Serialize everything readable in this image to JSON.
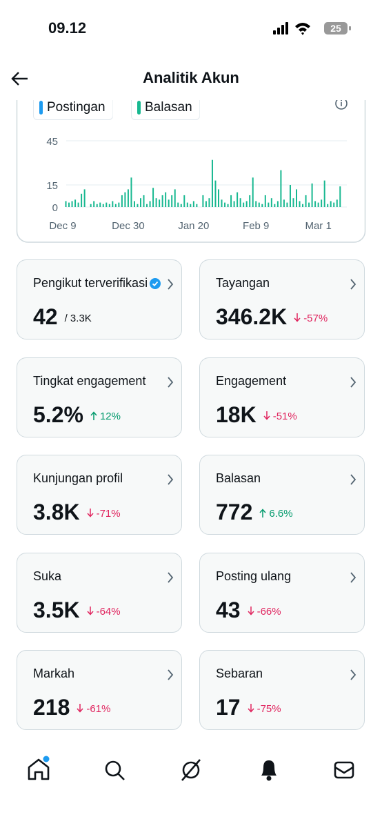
{
  "status": {
    "time": "09.12",
    "battery": "25"
  },
  "header": {
    "title": "Analitik Akun"
  },
  "chart_data": {
    "type": "bar",
    "stacked": true,
    "categories": [
      "Dec 9",
      null,
      null,
      null,
      null,
      null,
      null,
      null,
      null,
      null,
      null,
      null,
      null,
      null,
      null,
      null,
      null,
      null,
      null,
      null,
      null,
      "Dec 30",
      null,
      null,
      null,
      null,
      null,
      null,
      null,
      null,
      null,
      null,
      null,
      null,
      null,
      null,
      null,
      null,
      null,
      null,
      null,
      null,
      "Jan 20",
      null,
      null,
      null,
      null,
      null,
      null,
      null,
      null,
      null,
      null,
      null,
      null,
      null,
      null,
      null,
      null,
      null,
      null,
      null,
      "Feb 9",
      null,
      null,
      null,
      null,
      null,
      null,
      null,
      null,
      null,
      null,
      null,
      null,
      null,
      null,
      null,
      null,
      null,
      null,
      null,
      "Mar 1",
      null,
      null,
      null,
      null,
      null,
      null,
      null
    ],
    "series": [
      {
        "name": "Postingan",
        "color": "#1d9bf0",
        "values": [
          0,
          0,
          0,
          0,
          0,
          0,
          0,
          0,
          0,
          0,
          0,
          0,
          0,
          0,
          0,
          0,
          0,
          0,
          0,
          0,
          0,
          0,
          0,
          0,
          0,
          0,
          0,
          0,
          0,
          0,
          0,
          0,
          0,
          0,
          0,
          0,
          0,
          0,
          0,
          0,
          0,
          0,
          0,
          0,
          0,
          0,
          0,
          0,
          0,
          0,
          0,
          0,
          0,
          0,
          0,
          0,
          0,
          0,
          0,
          0,
          0,
          0,
          0,
          0,
          0,
          0,
          0,
          0,
          0,
          0,
          0,
          0,
          0,
          0,
          0,
          0,
          0,
          0,
          0,
          0,
          0,
          0,
          0,
          0,
          0,
          0,
          0,
          0,
          0,
          0
        ]
      },
      {
        "name": "Balasan",
        "color": "#17b890",
        "values": [
          0,
          4,
          3,
          4,
          5,
          3,
          9,
          12,
          0,
          2,
          4,
          2,
          3,
          2,
          3,
          2,
          4,
          2,
          3,
          8,
          10,
          12,
          20,
          4,
          2,
          6,
          8,
          2,
          4,
          13,
          6,
          5,
          8,
          10,
          5,
          8,
          12,
          3,
          2,
          8,
          3,
          2,
          4,
          2,
          0,
          8,
          4,
          6,
          32,
          18,
          12,
          5,
          3,
          2,
          8,
          4,
          10,
          6,
          3,
          4,
          8,
          20,
          4,
          3,
          2,
          8,
          3,
          6,
          2,
          4,
          25,
          5,
          3,
          15,
          6,
          12,
          4,
          2,
          8,
          3,
          16,
          4,
          3,
          5,
          18,
          2,
          4,
          3,
          5,
          14
        ]
      }
    ],
    "ylim": [
      0,
      45
    ],
    "yticks": [
      0,
      15,
      45
    ],
    "grid": true
  },
  "cards": [
    {
      "title": "Pengikut terverifikasi",
      "value": "42",
      "sub": "/ 3.3K",
      "verified": true
    },
    {
      "title": "Tayangan",
      "value": "346.2K",
      "change": "-57%",
      "trend": "down"
    },
    {
      "title": "Tingkat engagement",
      "value": "5.2%",
      "change": "12%",
      "trend": "up"
    },
    {
      "title": "Engagement",
      "value": "18K",
      "change": "-51%",
      "trend": "down"
    },
    {
      "title": "Kunjungan profil",
      "value": "3.8K",
      "change": "-71%",
      "trend": "down"
    },
    {
      "title": "Balasan",
      "value": "772",
      "change": "6.6%",
      "trend": "up"
    },
    {
      "title": "Suka",
      "value": "3.5K",
      "change": "-64%",
      "trend": "down"
    },
    {
      "title": "Posting ulang",
      "value": "43",
      "change": "-66%",
      "trend": "down"
    },
    {
      "title": "Markah",
      "value": "218",
      "change": "-61%",
      "trend": "down"
    },
    {
      "title": "Sebaran",
      "value": "17",
      "change": "-75%",
      "trend": "down"
    }
  ]
}
